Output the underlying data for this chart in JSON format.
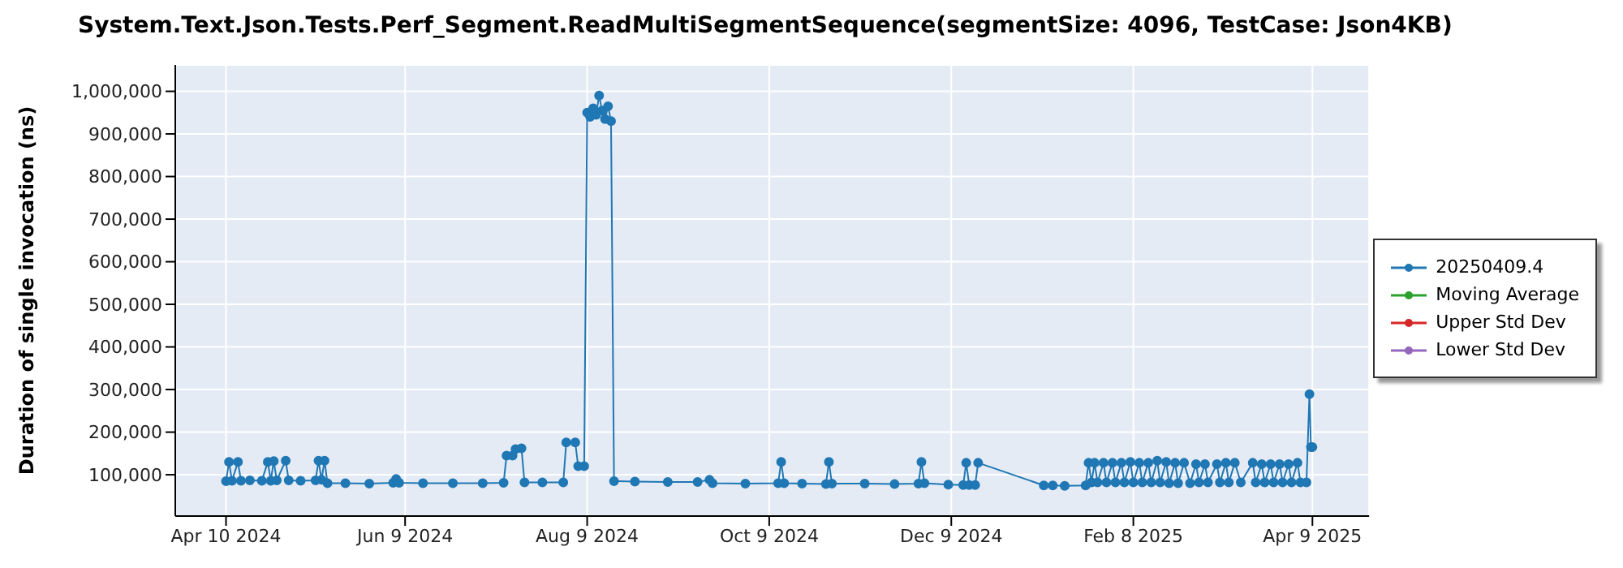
{
  "chart_data": {
    "type": "line",
    "title": "System.Text.Json.Tests.Perf_Segment.ReadMultiSegmentSequence(segmentSize: 4096, TestCase: Json4KB)",
    "ylabel": "Duration of single invocation (ns)",
    "x": [
      "2024-04-10",
      "2024-04-11",
      "2024-04-12",
      "2024-04-14",
      "2024-04-15",
      "2024-04-18",
      "2024-04-22",
      "2024-04-24",
      "2024-04-25",
      "2024-04-26",
      "2024-04-27",
      "2024-04-30",
      "2024-05-01",
      "2024-05-05",
      "2024-05-10",
      "2024-05-11",
      "2024-05-12",
      "2024-05-13",
      "2024-05-14",
      "2024-05-20",
      "2024-05-28",
      "2024-06-05",
      "2024-06-06",
      "2024-06-07",
      "2024-06-15",
      "2024-06-25",
      "2024-07-05",
      "2024-07-12",
      "2024-07-13",
      "2024-07-15",
      "2024-07-16",
      "2024-07-18",
      "2024-07-19",
      "2024-07-25",
      "2024-08-01",
      "2024-08-02",
      "2024-08-05",
      "2024-08-06",
      "2024-08-08",
      "2024-08-09",
      "2024-08-10",
      "2024-08-11",
      "2024-08-12",
      "2024-08-13",
      "2024-08-14",
      "2024-08-15",
      "2024-08-16",
      "2024-08-17",
      "2024-08-18",
      "2024-08-25",
      "2024-09-05",
      "2024-09-15",
      "2024-09-19",
      "2024-09-20",
      "2024-10-01",
      "2024-10-12",
      "2024-10-13",
      "2024-10-14",
      "2024-10-20",
      "2024-10-28",
      "2024-10-29",
      "2024-10-30",
      "2024-11-10",
      "2024-11-20",
      "2024-11-28",
      "2024-11-29",
      "2024-11-30",
      "2024-12-08",
      "2024-12-13",
      "2024-12-14",
      "2024-12-15",
      "2024-12-17",
      "2024-12-18",
      "2025-01-09",
      "2025-01-12",
      "2025-01-16",
      "2025-01-23",
      "2025-01-24",
      "2025-01-25",
      "2025-01-26",
      "2025-01-27",
      "2025-01-29",
      "2025-01-30",
      "2025-02-01",
      "2025-02-02",
      "2025-02-04",
      "2025-02-05",
      "2025-02-07",
      "2025-02-08",
      "2025-02-10",
      "2025-02-11",
      "2025-02-13",
      "2025-02-14",
      "2025-02-16",
      "2025-02-17",
      "2025-02-19",
      "2025-02-20",
      "2025-02-22",
      "2025-02-23",
      "2025-02-25",
      "2025-02-27",
      "2025-03-01",
      "2025-03-02",
      "2025-03-04",
      "2025-03-05",
      "2025-03-08",
      "2025-03-09",
      "2025-03-11",
      "2025-03-12",
      "2025-03-14",
      "2025-03-16",
      "2025-03-20",
      "2025-03-21",
      "2025-03-23",
      "2025-03-24",
      "2025-03-26",
      "2025-03-27",
      "2025-03-29",
      "2025-03-30",
      "2025-04-01",
      "2025-04-02",
      "2025-04-04",
      "2025-04-05",
      "2025-04-07",
      "2025-04-08",
      "2025-04-08T12:00",
      "2025-04-09"
    ],
    "series": [
      {
        "name": "20250409.4",
        "color": "#1f77b4",
        "values": [
          85000,
          130000,
          86000,
          130000,
          86000,
          87000,
          86000,
          130000,
          86000,
          132000,
          87000,
          133000,
          87000,
          86000,
          87000,
          133000,
          88000,
          133000,
          80000,
          80000,
          79000,
          81000,
          90000,
          81000,
          80000,
          80000,
          80000,
          81000,
          145000,
          145000,
          160000,
          162000,
          82000,
          82000,
          82000,
          176000,
          176000,
          120000,
          120000,
          950000,
          940000,
          960000,
          945000,
          990000,
          955000,
          935000,
          965000,
          930000,
          85000,
          84000,
          83000,
          83000,
          88000,
          80000,
          79000,
          80000,
          130000,
          80000,
          79000,
          78000,
          130000,
          79000,
          79000,
          78000,
          79000,
          130000,
          80000,
          77000,
          76000,
          128000,
          76000,
          76000,
          128000,
          75000,
          75000,
          74000,
          75000,
          128000,
          82000,
          128000,
          82000,
          128000,
          82000,
          128000,
          82000,
          128000,
          82000,
          130000,
          82000,
          128000,
          82000,
          128000,
          82000,
          133000,
          82000,
          130000,
          80000,
          128000,
          80000,
          128000,
          80000,
          125000,
          82000,
          125000,
          82000,
          125000,
          82000,
          128000,
          82000,
          128000,
          82000,
          128000,
          82000,
          125000,
          82000,
          125000,
          82000,
          125000,
          82000,
          125000,
          82000,
          128000,
          82000,
          82000,
          289000,
          165000,
          165000
        ]
      },
      {
        "name": "Moving Average",
        "color": "#2ca02c",
        "values": [
          null,
          null,
          null,
          null,
          null,
          null,
          null,
          null,
          null,
          null,
          null,
          null,
          null,
          null,
          null,
          null,
          null,
          null,
          null,
          null,
          null,
          null,
          null,
          null,
          null,
          null,
          null,
          null,
          null,
          null,
          null,
          null,
          null,
          null,
          null,
          null,
          null,
          null,
          null,
          null,
          null,
          null,
          null,
          null,
          null,
          null,
          null,
          null,
          null,
          null,
          null,
          null,
          null,
          null,
          null,
          null,
          null,
          null,
          null,
          null,
          null,
          null,
          null,
          null,
          null,
          null,
          null,
          null,
          null,
          null,
          null,
          null,
          null,
          null,
          null,
          null,
          null,
          null,
          null,
          null,
          null,
          null,
          null,
          null,
          null,
          null,
          null,
          null,
          null,
          null,
          null,
          null,
          null,
          null,
          null,
          null,
          null,
          null,
          null,
          null,
          null,
          null,
          null,
          null,
          null,
          null,
          null,
          null,
          null,
          null,
          null,
          null,
          null,
          null,
          null,
          null,
          null,
          null,
          null,
          null,
          null,
          null,
          null,
          null,
          null,
          null,
          null
        ]
      },
      {
        "name": "Upper Std Dev",
        "color": "#d62728",
        "values": [
          null,
          null,
          null,
          null,
          null,
          null,
          null,
          null,
          null,
          null,
          null,
          null,
          null,
          null,
          null,
          null,
          null,
          null,
          null,
          null,
          null,
          null,
          null,
          null,
          null,
          null,
          null,
          null,
          null,
          null,
          null,
          null,
          null,
          null,
          null,
          null,
          null,
          null,
          null,
          null,
          null,
          null,
          null,
          null,
          null,
          null,
          null,
          null,
          null,
          null,
          null,
          null,
          null,
          null,
          null,
          null,
          null,
          null,
          null,
          null,
          null,
          null,
          null,
          null,
          null,
          null,
          null,
          null,
          null,
          null,
          null,
          null,
          null,
          null,
          null,
          null,
          null,
          null,
          null,
          null,
          null,
          null,
          null,
          null,
          null,
          null,
          null,
          null,
          null,
          null,
          null,
          null,
          null,
          null,
          null,
          null,
          null,
          null,
          null,
          null,
          null,
          null,
          null,
          null,
          null,
          null,
          null,
          null,
          null,
          null,
          null,
          null,
          null,
          null,
          null,
          null,
          null,
          null,
          null,
          null,
          null,
          null,
          null,
          null,
          null,
          null,
          null
        ]
      },
      {
        "name": "Lower Std Dev",
        "color": "#9467bd",
        "values": [
          null,
          null,
          null,
          null,
          null,
          null,
          null,
          null,
          null,
          null,
          null,
          null,
          null,
          null,
          null,
          null,
          null,
          null,
          null,
          null,
          null,
          null,
          null,
          null,
          null,
          null,
          null,
          null,
          null,
          null,
          null,
          null,
          null,
          null,
          null,
          null,
          null,
          null,
          null,
          null,
          null,
          null,
          null,
          null,
          null,
          null,
          null,
          null,
          null,
          null,
          null,
          null,
          null,
          null,
          null,
          null,
          null,
          null,
          null,
          null,
          null,
          null,
          null,
          null,
          null,
          null,
          null,
          null,
          null,
          null,
          null,
          null,
          null,
          null,
          null,
          null,
          null,
          null,
          null,
          null,
          null,
          null,
          null,
          null,
          null,
          null,
          null,
          null,
          null,
          null,
          null,
          null,
          null,
          null,
          null,
          null,
          null,
          null,
          null,
          null,
          null,
          null,
          null,
          null,
          null,
          null,
          null,
          null,
          null,
          null,
          null,
          null,
          null,
          null,
          null,
          null,
          null,
          null,
          null,
          null,
          null,
          null,
          null,
          null,
          null,
          null,
          null
        ]
      }
    ],
    "xlim": [
      "2024-03-24",
      "2025-04-28"
    ],
    "xticks": [
      {
        "value": "2024-04-10",
        "label": "Apr 10 2024"
      },
      {
        "value": "2024-06-09",
        "label": "Jun 9 2024"
      },
      {
        "value": "2024-08-09",
        "label": "Aug 9 2024"
      },
      {
        "value": "2024-10-09",
        "label": "Oct 9 2024"
      },
      {
        "value": "2024-12-09",
        "label": "Dec 9 2024"
      },
      {
        "value": "2025-02-08",
        "label": "Feb 8 2025"
      },
      {
        "value": "2025-04-09",
        "label": "Apr 9 2025"
      }
    ],
    "ylim": [
      3000,
      1062000
    ],
    "yticks": [
      {
        "value": 100000,
        "label": "100,000"
      },
      {
        "value": 200000,
        "label": "200,000"
      },
      {
        "value": 300000,
        "label": "300,000"
      },
      {
        "value": 400000,
        "label": "400,000"
      },
      {
        "value": 500000,
        "label": "500,000"
      },
      {
        "value": 600000,
        "label": "600,000"
      },
      {
        "value": 700000,
        "label": "700,000"
      },
      {
        "value": 800000,
        "label": "800,000"
      },
      {
        "value": 900000,
        "label": "900,000"
      },
      {
        "value": 1000000,
        "label": "1,000,000"
      }
    ],
    "grid": true,
    "legend": "right",
    "marker": "circle",
    "line_style": "solid"
  }
}
